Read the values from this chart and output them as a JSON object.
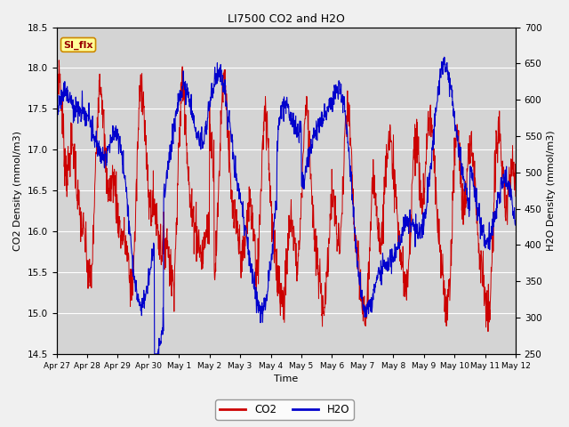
{
  "title": "LI7500 CO2 and H2O",
  "xlabel": "Time",
  "ylabel_left": "CO2 Density (mmol/m3)",
  "ylabel_right": "H2O Density (mmol/m3)",
  "ylim_left": [
    14.5,
    18.5
  ],
  "ylim_right": [
    250,
    700
  ],
  "co2_color": "#cc0000",
  "h2o_color": "#0000cc",
  "fig_facecolor": "#f0f0f0",
  "plot_facecolor": "#d4d4d4",
  "annotation_text": "SI_flx",
  "annotation_facecolor": "#ffff99",
  "annotation_edgecolor": "#cc8800",
  "annotation_textcolor": "#990000",
  "legend_co2": "CO2",
  "legend_h2o": "H2O",
  "xtick_labels": [
    "Apr 27",
    "Apr 28",
    "Apr 29",
    "Apr 30",
    "May 1",
    "May 2",
    "May 3",
    "May 4",
    "May 5",
    "May 6",
    "May 7",
    "May 8",
    "May 9",
    "May 10",
    "May 11",
    "May 12"
  ],
  "n_points": 1500
}
